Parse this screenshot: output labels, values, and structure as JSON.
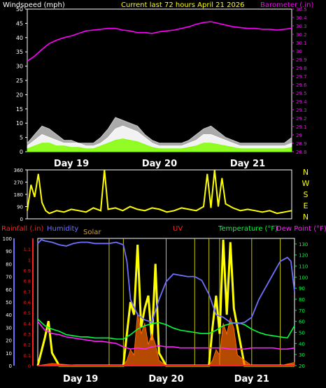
{
  "header": {
    "left": "Windspeed (mph)",
    "center": "Current last 72 hours April 21 2026",
    "right": "Barometer (.in)"
  },
  "colors": {
    "windspeed": "#ffffff",
    "gust": "#c8c8c8",
    "wind_avg": "#80ff00",
    "barometer": "#ff00ff",
    "wind_direction": "#ffff00",
    "rainfall": "#ff2020",
    "humidity": "#7070ff",
    "solar": "#ffff00",
    "uv": "#ff6a00",
    "temperature": "#00ff40",
    "dew_point": "#ff20ff",
    "title": "#ffff00"
  },
  "chart_data": [
    {
      "type": "area",
      "id": "wind_baro",
      "title": "Current last 72 hours April 21 2026",
      "ylabel": "Windspeed (mph)",
      "ylabel_right": "Barometer (.in)",
      "ylim": [
        0,
        50
      ],
      "yticks": [
        "0",
        "5",
        "10",
        "15",
        "20",
        "25",
        "30",
        "35",
        "40",
        "45",
        "50"
      ],
      "y2lim": [
        28.8,
        30.5
      ],
      "y2ticks": [
        "28.8",
        "28.9",
        "29",
        "29.1",
        "29.2",
        "29.3",
        "29.4",
        "29.5",
        "29.6",
        "29.7",
        "29.8",
        "29.9",
        "30",
        "30.1",
        "30.2",
        "30.3",
        "30.4",
        "30.5"
      ],
      "xlim": [
        0,
        72
      ],
      "xticks": [
        {
          "label": "Day 19",
          "x": 12
        },
        {
          "label": "Day 20",
          "x": 36
        },
        {
          "label": "Day 21",
          "x": 60
        }
      ],
      "series": [
        {
          "name": "Windspeed (mph)",
          "axis": "left",
          "x": [
            0,
            2,
            4,
            6,
            8,
            10,
            12,
            14,
            16,
            18,
            20,
            22,
            24,
            26,
            28,
            30,
            32,
            34,
            36,
            38,
            40,
            42,
            44,
            46,
            48,
            50,
            52,
            54,
            56,
            58,
            60,
            62,
            64,
            66,
            68,
            70,
            72
          ],
          "values": [
            2,
            4,
            6,
            5,
            4,
            3,
            3,
            3,
            2,
            2,
            3,
            5,
            8,
            9,
            8,
            7,
            5,
            3,
            2,
            2,
            2,
            2,
            3,
            4,
            6,
            6,
            5,
            4,
            3,
            2,
            2,
            2,
            2,
            2,
            2,
            2,
            3
          ]
        },
        {
          "name": "Gust",
          "axis": "left",
          "x": [
            0,
            2,
            4,
            6,
            8,
            10,
            12,
            14,
            16,
            18,
            20,
            22,
            24,
            26,
            28,
            30,
            32,
            34,
            36,
            38,
            40,
            42,
            44,
            46,
            48,
            50,
            52,
            54,
            56,
            58,
            60,
            62,
            64,
            66,
            68,
            70,
            72
          ],
          "values": [
            3,
            6,
            9,
            8,
            6,
            4,
            4,
            3,
            3,
            3,
            5,
            8,
            12,
            11,
            10,
            9,
            6,
            4,
            3,
            3,
            3,
            3,
            4,
            6,
            8,
            9,
            7,
            5,
            4,
            3,
            3,
            3,
            3,
            3,
            3,
            3,
            5
          ]
        },
        {
          "name": "Average",
          "axis": "left",
          "x": [
            0,
            2,
            4,
            6,
            8,
            10,
            12,
            14,
            16,
            18,
            20,
            22,
            24,
            26,
            28,
            30,
            32,
            34,
            36,
            38,
            40,
            42,
            44,
            46,
            48,
            50,
            52,
            54,
            56,
            58,
            60,
            62,
            64,
            66,
            68,
            70,
            72
          ],
          "values": [
            1,
            2,
            3,
            3,
            2,
            2,
            1.5,
            1.5,
            1,
            1,
            2,
            3,
            4,
            4.5,
            4,
            3.5,
            2.5,
            1.5,
            1,
            1,
            1,
            1,
            1.5,
            2,
            3,
            3,
            2.5,
            2,
            1.5,
            1,
            1,
            1,
            1,
            1,
            1,
            1,
            1.5
          ]
        },
        {
          "name": "Barometer (.in)",
          "axis": "right",
          "x": [
            0,
            2,
            4,
            6,
            8,
            10,
            12,
            14,
            16,
            18,
            20,
            22,
            24,
            26,
            28,
            30,
            32,
            34,
            36,
            38,
            40,
            42,
            44,
            46,
            48,
            50,
            52,
            54,
            56,
            58,
            60,
            62,
            64,
            66,
            68,
            70,
            72
          ],
          "values": [
            29.88,
            29.94,
            30.02,
            30.09,
            30.13,
            30.16,
            30.18,
            30.21,
            30.24,
            30.25,
            30.26,
            30.27,
            30.27,
            30.25,
            30.24,
            30.22,
            30.22,
            30.21,
            30.23,
            30.24,
            30.25,
            30.27,
            30.29,
            30.32,
            30.34,
            30.35,
            30.33,
            30.31,
            30.29,
            30.28,
            30.27,
            30.27,
            30.26,
            30.26,
            30.25,
            30.26,
            30.27
          ]
        }
      ]
    },
    {
      "type": "line",
      "id": "wind_direction",
      "ylim": [
        0,
        360
      ],
      "yticks": [
        "0",
        "90",
        "180",
        "270",
        "360"
      ],
      "compass": [
        "N",
        "W",
        "S",
        "E",
        "N"
      ],
      "xlim": [
        0,
        72
      ],
      "series": [
        {
          "name": "Wind Direction",
          "x": [
            0,
            1,
            2,
            3,
            4,
            5,
            6,
            7,
            8,
            10,
            12,
            14,
            16,
            18,
            20,
            21,
            22,
            24,
            26,
            28,
            30,
            32,
            34,
            36,
            38,
            40,
            42,
            44,
            46,
            48,
            49,
            50,
            51,
            52,
            53,
            54,
            56,
            58,
            60,
            62,
            64,
            66,
            68,
            70,
            72
          ],
          "values": [
            60,
            250,
            160,
            330,
            120,
            60,
            40,
            50,
            60,
            50,
            70,
            60,
            50,
            80,
            60,
            360,
            70,
            80,
            60,
            90,
            70,
            60,
            80,
            70,
            50,
            60,
            80,
            70,
            60,
            90,
            330,
            80,
            360,
            90,
            300,
            110,
            80,
            60,
            70,
            60,
            50,
            60,
            40,
            50,
            60
          ]
        }
      ]
    },
    {
      "type": "line",
      "id": "weather_multi",
      "labels": {
        "rainfall": "Rainfall (.in)",
        "humidity": "Humidity",
        "solar": "Solar",
        "uv": "UV",
        "temperature": "Temperature (°F)",
        "dew_point": "Dew Point (°F)"
      },
      "humidity_axis": {
        "ylim": [
          0,
          100
        ],
        "yticks": [
          "0",
          "10",
          "20",
          "30",
          "40",
          "50",
          "60",
          "70",
          "80",
          "90",
          "100"
        ]
      },
      "rain_axis": {
        "ylim": [
          0,
          1.2
        ],
        "yticks": [
          "0",
          "0.1",
          "0.2",
          "0.3",
          "0.4",
          "0.5",
          "0.6",
          "0.7",
          "0.8",
          "0.9",
          "1",
          "1.1"
        ]
      },
      "temp_axis": {
        "ylim": [
          20,
          135
        ],
        "yticks": [
          "20",
          "30",
          "40",
          "50",
          "60",
          "70",
          "80",
          "90",
          "100",
          "110",
          "120",
          "130"
        ]
      },
      "xlim": [
        0,
        72
      ],
      "xticks": [
        {
          "label": "Day 19",
          "x": 12
        },
        {
          "label": "Day 20",
          "x": 36
        },
        {
          "label": "Day 21",
          "x": 60
        }
      ],
      "series": [
        {
          "name": "Humidity",
          "axis": "humidity",
          "x": [
            0,
            1,
            2,
            4,
            6,
            8,
            10,
            12,
            14,
            16,
            18,
            20,
            22,
            24,
            25,
            26,
            28,
            30,
            32,
            34,
            36,
            38,
            40,
            42,
            44,
            46,
            48,
            50,
            52,
            54,
            56,
            58,
            60,
            62,
            64,
            66,
            68,
            70,
            71,
            72
          ],
          "values": [
            96,
            99,
            98,
            97,
            95,
            94,
            96,
            97,
            97,
            96,
            96,
            96,
            97,
            95,
            82,
            52,
            40,
            36,
            34,
            52,
            66,
            72,
            71,
            70,
            70,
            67,
            56,
            40,
            38,
            34,
            33,
            34,
            38,
            52,
            62,
            72,
            82,
            85,
            82,
            58
          ]
        },
        {
          "name": "Temperature (°F)",
          "axis": "temp",
          "x": [
            0,
            2,
            4,
            6,
            8,
            10,
            12,
            14,
            16,
            18,
            20,
            22,
            24,
            26,
            28,
            30,
            32,
            34,
            36,
            38,
            40,
            42,
            44,
            46,
            48,
            50,
            52,
            54,
            56,
            58,
            60,
            62,
            64,
            66,
            68,
            70,
            72
          ],
          "values": [
            62,
            56,
            53,
            51,
            48,
            47,
            46,
            46,
            45,
            45,
            45,
            44,
            44,
            48,
            53,
            56,
            58,
            59,
            57,
            54,
            52,
            51,
            50,
            49,
            49,
            52,
            56,
            58,
            59,
            57,
            53,
            50,
            48,
            47,
            46,
            45,
            56
          ]
        },
        {
          "name": "Dew Point (°F)",
          "axis": "temp",
          "x": [
            0,
            2,
            4,
            6,
            8,
            10,
            12,
            14,
            16,
            18,
            20,
            22,
            24,
            26,
            28,
            30,
            32,
            34,
            36,
            38,
            40,
            42,
            44,
            46,
            48,
            50,
            52,
            54,
            56,
            58,
            60,
            62,
            64,
            66,
            68,
            70,
            72
          ],
          "values": [
            60,
            52,
            49,
            48,
            46,
            45,
            44,
            43,
            42,
            42,
            41,
            40,
            37,
            35,
            36,
            35,
            37,
            38,
            37,
            37,
            36,
            36,
            36,
            36,
            36,
            36,
            36,
            35,
            35,
            35,
            36,
            36,
            36,
            36,
            35,
            35,
            36
          ]
        },
        {
          "name": "Solar",
          "axis": "humidity",
          "x": [
            0,
            2,
            3,
            4,
            6,
            8,
            10,
            12,
            14,
            16,
            18,
            20,
            22,
            24,
            25,
            26,
            27,
            28,
            29,
            30,
            31,
            32,
            33,
            34,
            36,
            38,
            40,
            42,
            44,
            46,
            48,
            49,
            50,
            51,
            52,
            53,
            54,
            55,
            56,
            58,
            60,
            62,
            64,
            66,
            68,
            70,
            72
          ],
          "values": [
            0,
            22,
            35,
            10,
            0,
            0,
            0,
            0,
            0,
            0,
            0,
            0,
            0,
            0,
            25,
            50,
            40,
            95,
            30,
            45,
            55,
            20,
            80,
            10,
            0,
            0,
            0,
            0,
            0,
            0,
            0,
            30,
            55,
            25,
            99,
            40,
            97,
            45,
            30,
            0,
            0,
            0,
            0,
            0,
            0,
            0,
            0
          ]
        },
        {
          "name": "UV",
          "axis": "rain",
          "x": [
            0,
            4,
            8,
            12,
            16,
            20,
            24,
            25,
            26,
            27,
            28,
            29,
            30,
            31,
            32,
            33,
            34,
            36,
            40,
            44,
            48,
            49,
            50,
            51,
            52,
            53,
            54,
            55,
            56,
            58,
            60,
            64,
            68,
            72
          ],
          "values": [
            0,
            0.02,
            0.01,
            0,
            0,
            0,
            0,
            0.05,
            0.15,
            0.1,
            0.5,
            0.3,
            0.4,
            0.2,
            0.3,
            0.2,
            0.05,
            0,
            0,
            0,
            0,
            0.05,
            0.15,
            0.1,
            0.4,
            0.3,
            0.45,
            0.35,
            0.1,
            0.05,
            0,
            0,
            0,
            0.03
          ]
        },
        {
          "name": "Rainfall (.in)",
          "axis": "rain",
          "x": [
            0,
            72
          ],
          "values": [
            0,
            0
          ]
        }
      ],
      "markers": [
        {
          "x": 20
        },
        {
          "x": 24
        },
        {
          "x": 36
        },
        {
          "x": 44
        },
        {
          "x": 48
        },
        {
          "x": 51
        },
        {
          "x": 60
        },
        {
          "x": 68
        }
      ]
    }
  ]
}
